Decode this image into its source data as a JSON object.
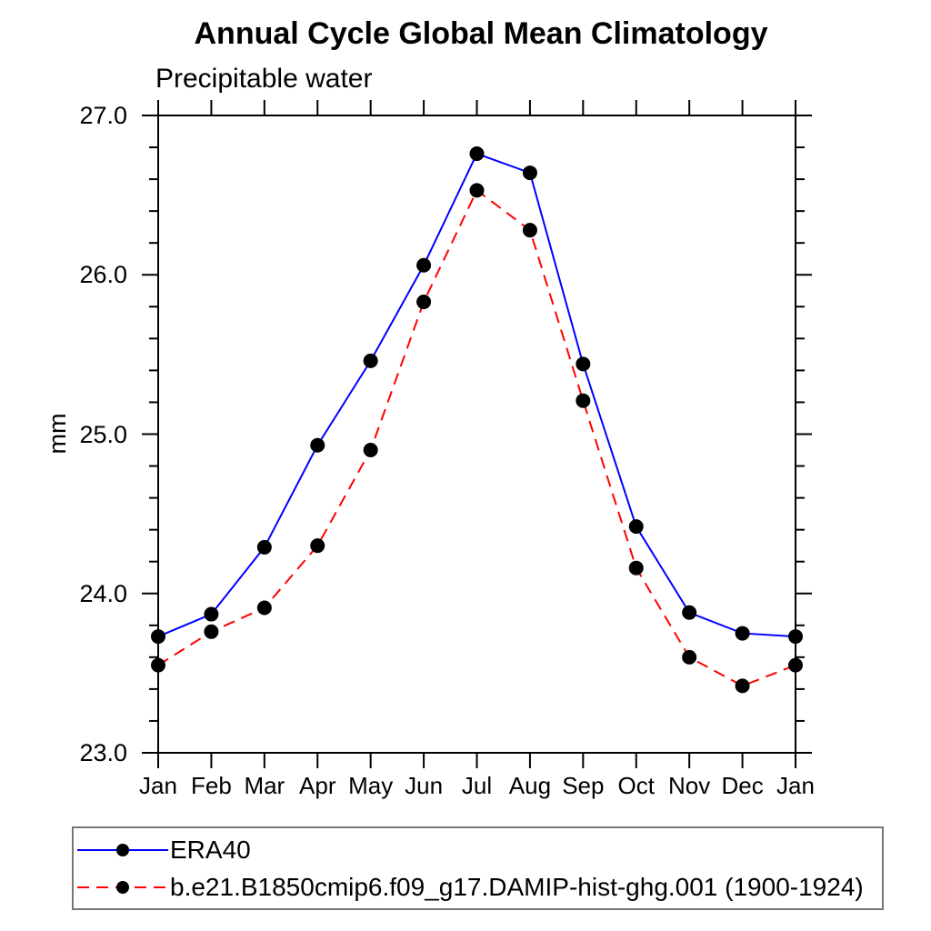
{
  "chart_data": {
    "type": "line",
    "title": "Annual Cycle Global Mean Climatology",
    "subtitle": "Precipitable water",
    "ylabel": "mm",
    "categories": [
      "Jan",
      "Feb",
      "Mar",
      "Apr",
      "May",
      "Jun",
      "Jul",
      "Aug",
      "Sep",
      "Oct",
      "Nov",
      "Dec",
      "Jan"
    ],
    "series": [
      {
        "name": "ERA40",
        "line_color": "#0000ff",
        "line_style": "solid",
        "marker": "filled-circle",
        "marker_color": "#000000",
        "values": [
          23.73,
          23.87,
          24.29,
          24.93,
          25.46,
          26.06,
          26.76,
          26.64,
          25.44,
          24.42,
          23.88,
          23.75,
          23.73
        ]
      },
      {
        "name": "b.e21.B1850cmip6.f09_g17.DAMIP-hist-ghg.001 (1900-1924)",
        "line_color": "#ff0000",
        "line_style": "dashed",
        "marker": "filled-circle",
        "marker_color": "#000000",
        "values": [
          23.55,
          23.76,
          23.91,
          24.3,
          24.9,
          25.83,
          26.53,
          26.28,
          25.21,
          24.16,
          23.6,
          23.42,
          23.55
        ]
      }
    ],
    "ylim": [
      23.0,
      27.0
    ],
    "y_tick_labels": [
      "23.0",
      "24.0",
      "25.0",
      "26.0",
      "27.0"
    ],
    "y_major_tick_step": 1.0,
    "y_minor_tick_step": 0.2,
    "grid": false,
    "legend_position": "bottom",
    "axis_color": "#000000",
    "legend_border_color": "#777777"
  }
}
